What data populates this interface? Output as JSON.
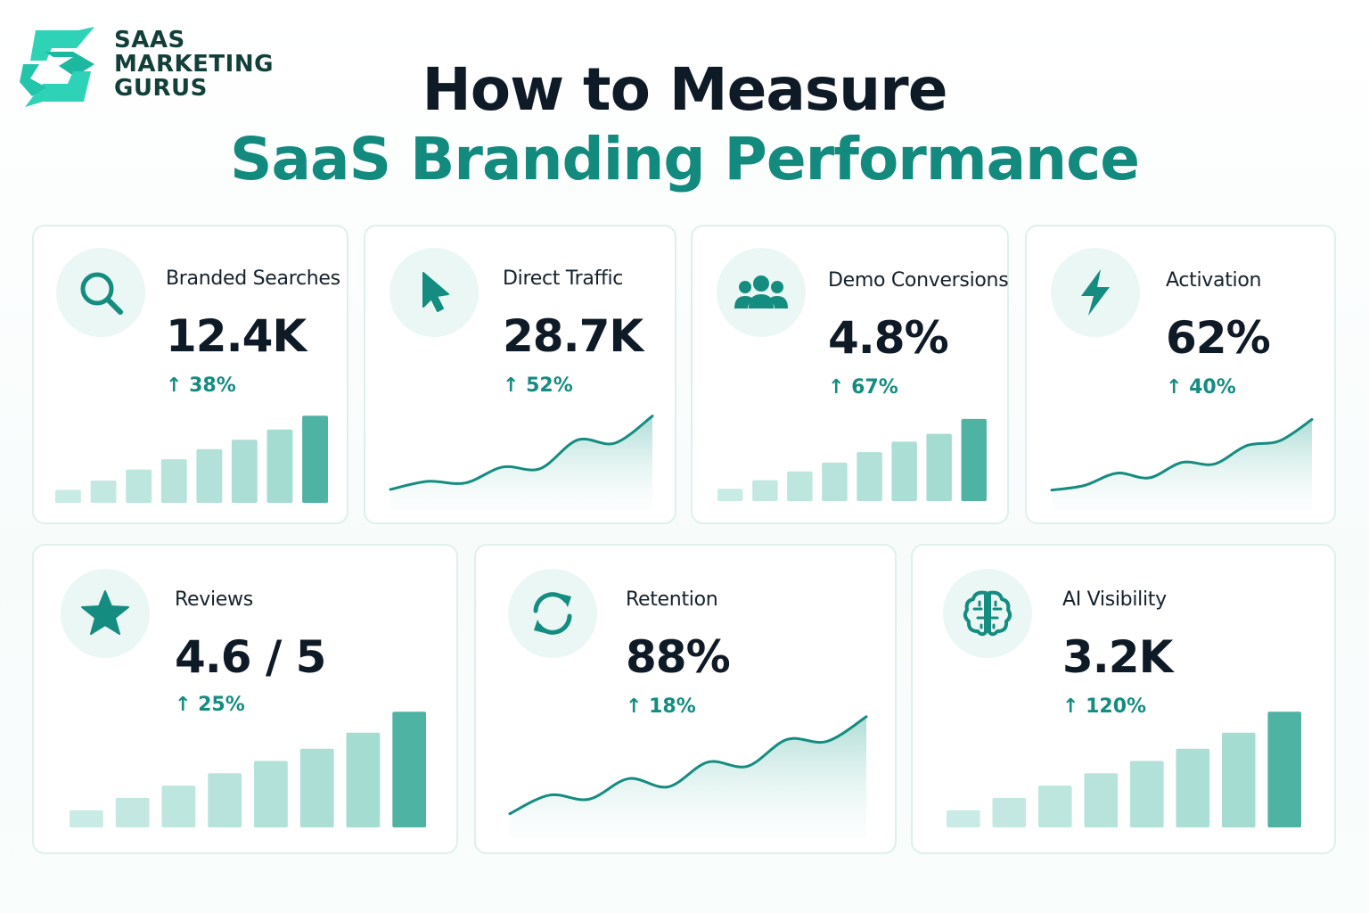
{
  "brand": {
    "name_lines": [
      "SAAS",
      "MARKETING",
      "GURUS"
    ],
    "logo_color": "#2ed3b7",
    "text_color": "#123f3a"
  },
  "title": {
    "line1": "How to Measure",
    "line2": "SaaS Branding Performance"
  },
  "colors": {
    "accent": "#158c80",
    "bar_full": "#4fb3a4",
    "bar_light": "#c9ebe5",
    "card_border": "#ddf1ec"
  },
  "metrics": [
    {
      "label": "Branded Searches",
      "value": "12.4K",
      "change": "↑ 38%",
      "icon": "search-icon",
      "chart_type": "bar"
    },
    {
      "label": "Direct Traffic",
      "value": "28.7K",
      "change": "↑ 52%",
      "icon": "cursor-icon",
      "chart_type": "area"
    },
    {
      "label": "Demo Conversions",
      "value": "4.8%",
      "change": "↑ 67%",
      "icon": "users-icon",
      "chart_type": "bar"
    },
    {
      "label": "Activation",
      "value": "62%",
      "change": "↑ 40%",
      "icon": "lightning-icon",
      "chart_type": "area"
    },
    {
      "label": "Reviews",
      "value": "4.6 / 5",
      "change": "↑ 25%",
      "icon": "star-icon",
      "chart_type": "bar"
    },
    {
      "label": "Retention",
      "value": "88%",
      "change": "↑ 18%",
      "icon": "refresh-icon",
      "chart_type": "area"
    },
    {
      "label": "AI Visibility",
      "value": "3.2K",
      "change": "↑ 120%",
      "icon": "brain-icon",
      "chart_type": "bar"
    }
  ],
  "chart_data": [
    {
      "type": "bar",
      "values": [
        14,
        24,
        36,
        47,
        58,
        68,
        79,
        94
      ]
    },
    {
      "type": "area",
      "values": [
        8,
        18,
        16,
        36,
        34,
        70,
        66,
        100
      ]
    },
    {
      "type": "bar",
      "values": [
        14,
        24,
        34,
        44,
        56,
        68,
        77,
        94
      ]
    },
    {
      "type": "area",
      "values": [
        8,
        14,
        30,
        24,
        44,
        42,
        66,
        72,
        100
      ]
    },
    {
      "type": "bar",
      "values": [
        14,
        24,
        34,
        44,
        54,
        64,
        77,
        94
      ]
    },
    {
      "type": "area",
      "values": [
        6,
        24,
        20,
        40,
        32,
        56,
        52,
        78,
        76,
        100
      ]
    },
    {
      "type": "bar",
      "values": [
        14,
        24,
        34,
        44,
        54,
        64,
        77,
        94
      ]
    }
  ]
}
